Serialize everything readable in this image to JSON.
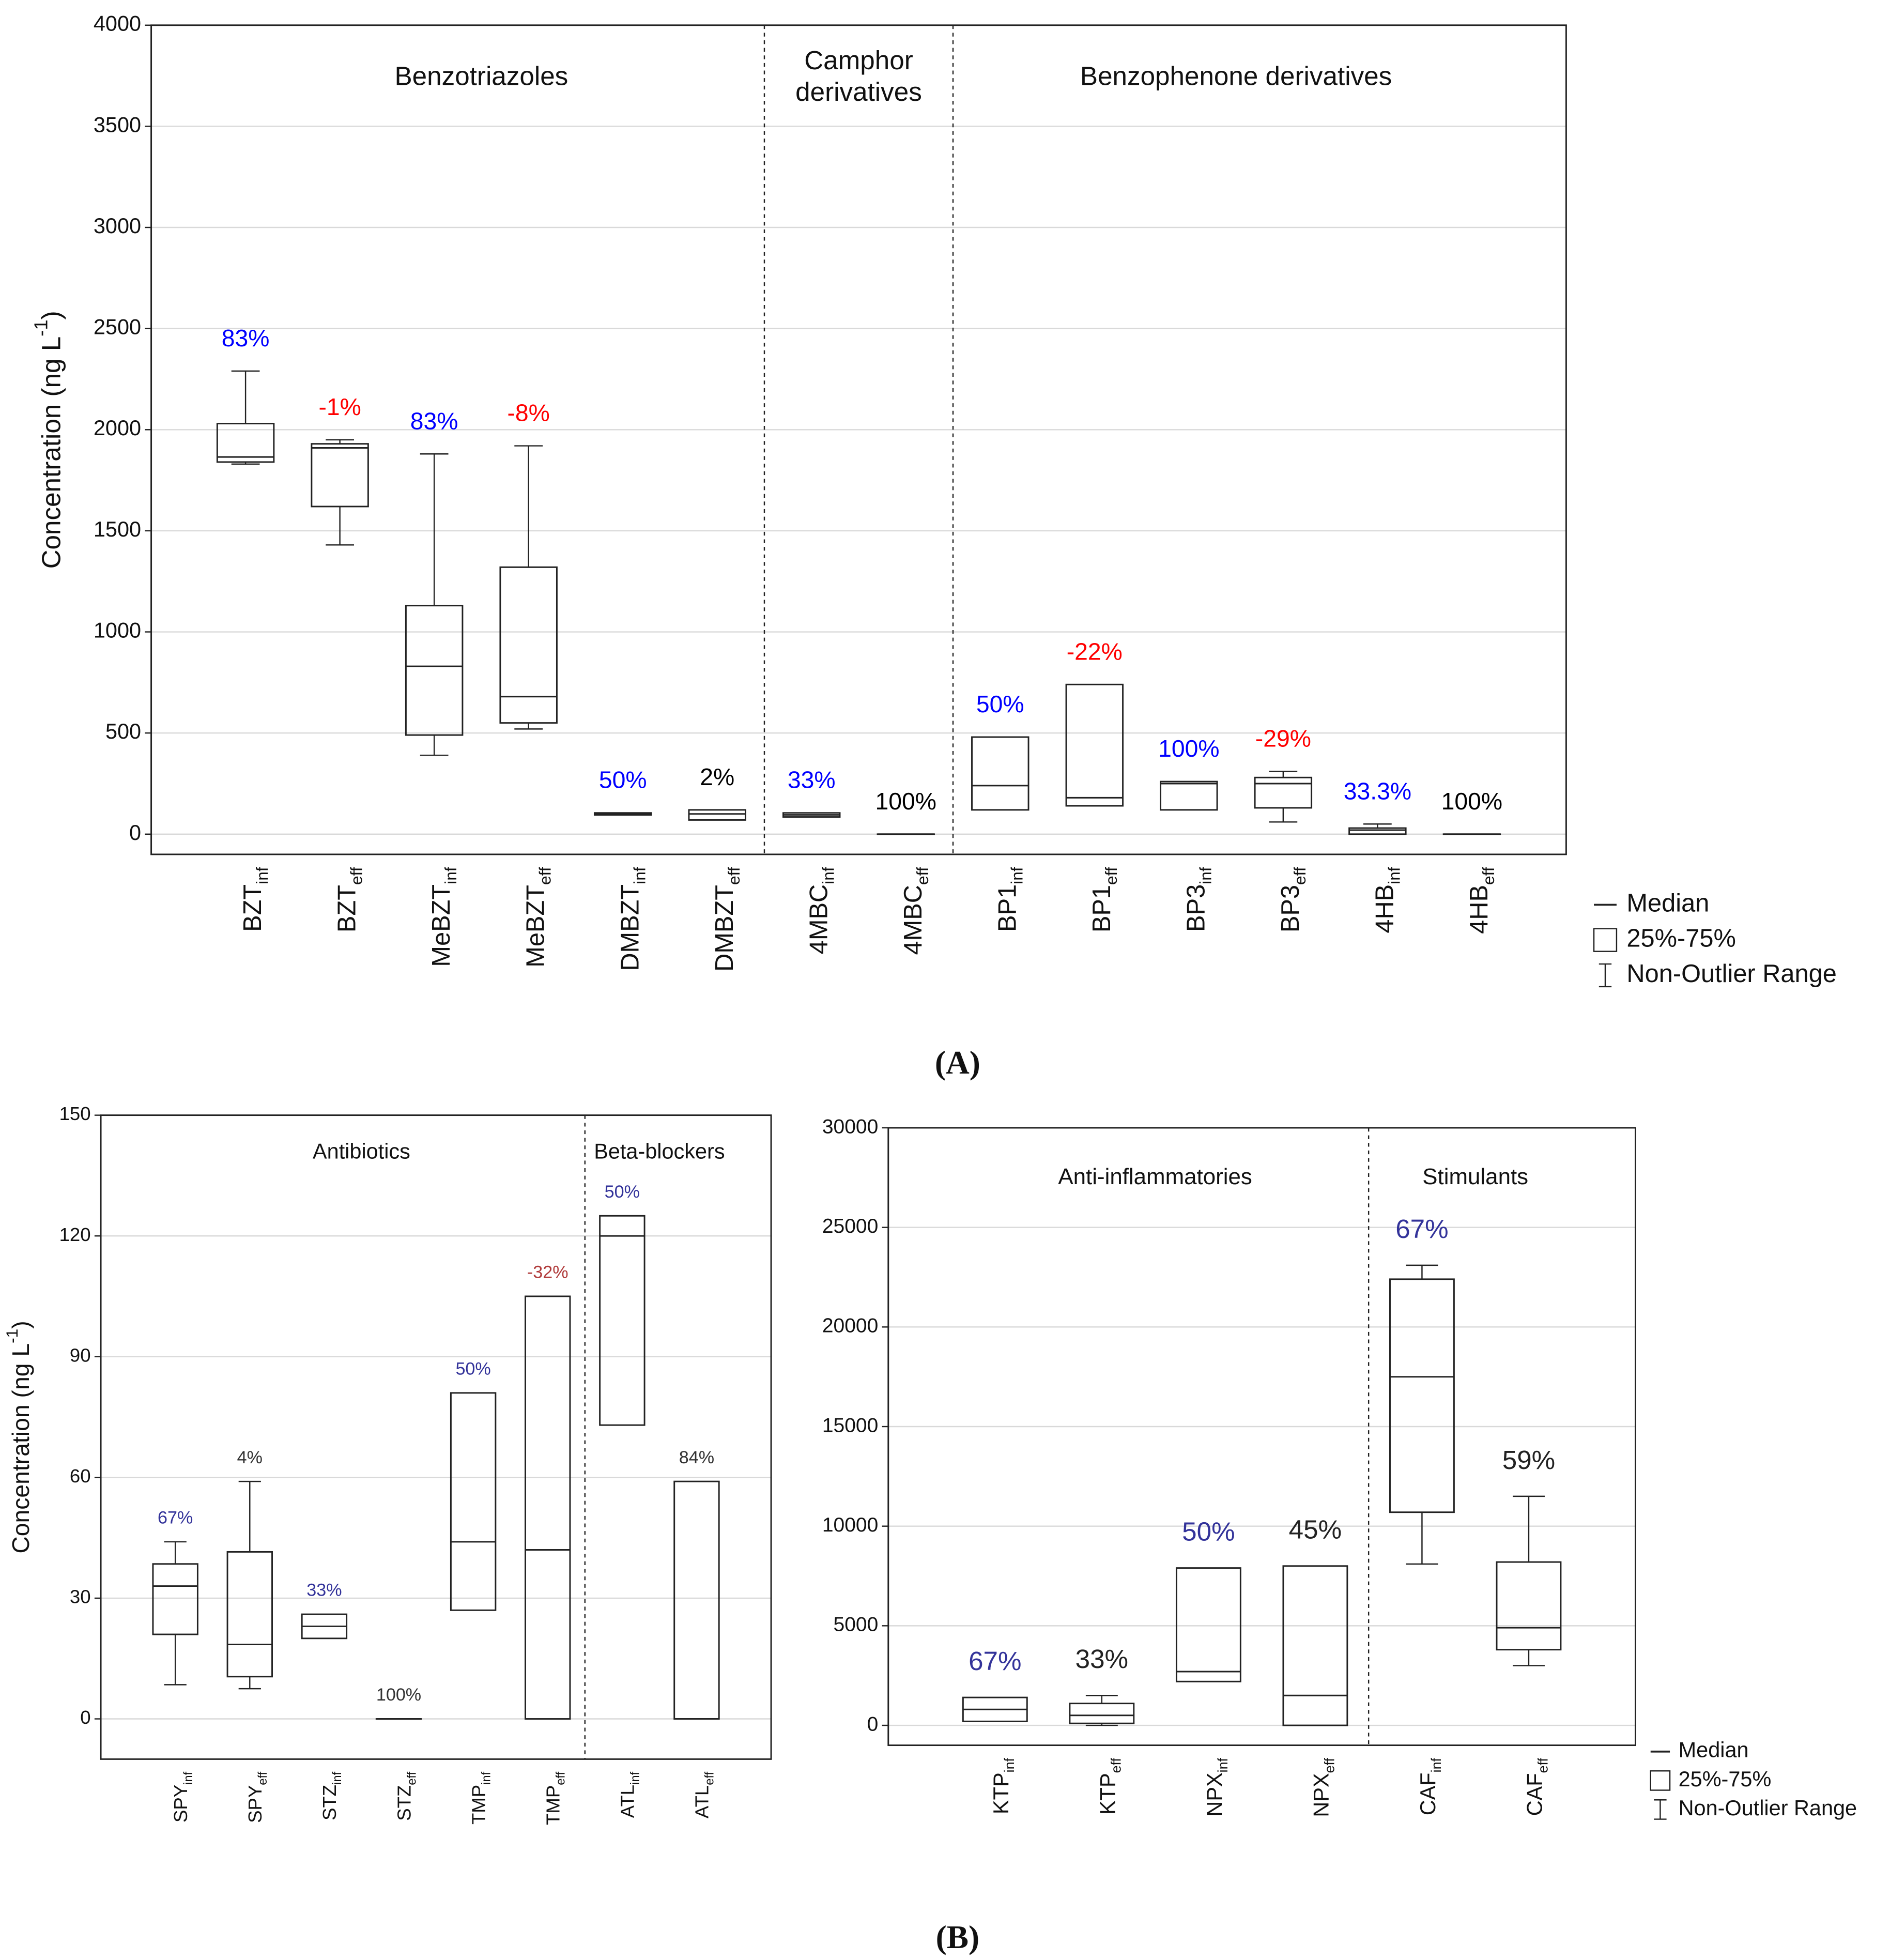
{
  "captions": [
    "(A)",
    "(B)"
  ],
  "chart_data": [
    {
      "type": "box",
      "ylabel": "Concentration (ng L",
      "ylabel_sup": "-1",
      "ylabel_end": ")",
      "ylim": [
        -100,
        4000
      ],
      "yticks": [
        0,
        500,
        1000,
        1500,
        2000,
        2500,
        3000,
        3500,
        4000
      ],
      "grid": true,
      "legend": [
        "Median",
        "25%-75%",
        "Non-Outlier Range"
      ],
      "groups": [
        {
          "label": [
            "Benzotriazoles"
          ],
          "boxes": [
            {
              "name": "BZT",
              "sub": "inf",
              "min": 1830,
              "q1": 1840,
              "median": 1865,
              "q3": 2030,
              "max": 2290,
              "label": "83%",
              "label_color": "#0000ff"
            },
            {
              "name": "BZT",
              "sub": "eff",
              "min": 1430,
              "q1": 1620,
              "median": 1910,
              "q3": 1930,
              "max": 1950,
              "label": "-1%",
              "label_color": "#ff0000"
            },
            {
              "name": "MeBZT",
              "sub": "inf",
              "min": 390,
              "q1": 490,
              "median": 830,
              "q3": 1130,
              "max": 1880,
              "label": "83%",
              "label_color": "#0000ff"
            },
            {
              "name": "MeBZT",
              "sub": "eff",
              "min": 520,
              "q1": 550,
              "median": 680,
              "q3": 1320,
              "max": 1920,
              "label": "-8%",
              "label_color": "#ff0000"
            },
            {
              "name": "DMBZT",
              "sub": "inf",
              "min": 95,
              "q1": 95,
              "median": 100,
              "q3": 105,
              "max": 105,
              "label": "50%",
              "label_color": "#0000ff"
            },
            {
              "name": "DMBZT",
              "sub": "eff",
              "min": 70,
              "q1": 70,
              "median": 100,
              "q3": 120,
              "max": 120,
              "label": "2%",
              "label_color": "#000000"
            }
          ]
        },
        {
          "label": [
            "Camphor",
            "derivatives"
          ],
          "boxes": [
            {
              "name": "4MBC",
              "sub": "inf",
              "min": 85,
              "q1": 85,
              "median": 95,
              "q3": 105,
              "max": 105,
              "label": "33%",
              "label_color": "#0000ff"
            },
            {
              "name": "4MBC",
              "sub": "eff",
              "min": 0,
              "q1": 0,
              "median": 0,
              "q3": 0,
              "max": 0,
              "label": "100%",
              "label_color": "#000000"
            }
          ]
        },
        {
          "label": [
            "Benzophenone derivatives"
          ],
          "boxes": [
            {
              "name": "BP1",
              "sub": "inf",
              "min": 120,
              "q1": 120,
              "median": 240,
              "q3": 480,
              "max": 480,
              "label": "50%",
              "label_color": "#0000ff"
            },
            {
              "name": "BP1",
              "sub": "eff",
              "min": 140,
              "q1": 140,
              "median": 180,
              "q3": 740,
              "max": 740,
              "label": "-22%",
              "label_color": "#ff0000"
            },
            {
              "name": "BP3",
              "sub": "inf",
              "min": 120,
              "q1": 120,
              "median": 250,
              "q3": 260,
              "max": 260,
              "label": "100%",
              "label_color": "#0000ff"
            },
            {
              "name": "BP3",
              "sub": "eff",
              "min": 60,
              "q1": 130,
              "median": 250,
              "q3": 280,
              "max": 310,
              "label": "-29%",
              "label_color": "#ff0000"
            },
            {
              "name": "4HB",
              "sub": "inf",
              "min": 0,
              "q1": 0,
              "median": 20,
              "q3": 30,
              "max": 50,
              "label": "33.3%",
              "label_color": "#0000ff"
            },
            {
              "name": "4HB",
              "sub": "eff",
              "min": 0,
              "q1": 0,
              "median": 0,
              "q3": 0,
              "max": 0,
              "label": "100%",
              "label_color": "#000000"
            }
          ]
        }
      ]
    },
    {
      "type": "box",
      "ylabel": "Concentration (ng L",
      "ylabel_sup": "-1",
      "ylabel_end": ")",
      "ylim": [
        -10,
        150
      ],
      "yticks": [
        0,
        30,
        60,
        90,
        120,
        150
      ],
      "grid": true,
      "groups": [
        {
          "label": [
            "Antibiotics"
          ],
          "boxes": [
            {
              "name": "SPY",
              "sub": "inf",
              "min": 8.5,
              "q1": 21,
              "median": 33,
              "q3": 38.5,
              "max": 44,
              "label": "67%",
              "label_color": "#33339a"
            },
            {
              "name": "SPY",
              "sub": "eff",
              "min": 7.5,
              "q1": 10.5,
              "median": 18.5,
              "q3": 41.5,
              "max": 59,
              "label": "4%",
              "label_color": "#333333"
            },
            {
              "name": "STZ",
              "sub": "inf",
              "min": 20,
              "q1": 20,
              "median": 23,
              "q3": 26,
              "max": 26,
              "label": "33%",
              "label_color": "#33339a"
            },
            {
              "name": "STZ",
              "sub": "eff",
              "min": 0,
              "q1": 0,
              "median": 0,
              "q3": 0,
              "max": 0,
              "label": "100%",
              "label_color": "#333333"
            },
            {
              "name": "TMP",
              "sub": "inf",
              "min": 27,
              "q1": 27,
              "median": 44,
              "q3": 81,
              "max": 81,
              "label": "50%",
              "label_color": "#33339a"
            },
            {
              "name": "TMP",
              "sub": "eff",
              "min": 0,
              "q1": 0,
              "median": 42,
              "q3": 105,
              "max": 105,
              "label": "-32%",
              "label_color": "#b03a3a"
            }
          ]
        },
        {
          "label": [
            "Beta-blockers"
          ],
          "boxes": [
            {
              "name": "ATL",
              "sub": "inf",
              "min": 73,
              "q1": 73,
              "median": 120,
              "q3": 125,
              "max": 125,
              "label": "50%",
              "label_color": "#33339a"
            },
            {
              "name": "ATL",
              "sub": "eff",
              "min": 0,
              "q1": 0,
              "median": 0,
              "q3": 59,
              "max": 59,
              "label": "84%",
              "label_color": "#333333"
            }
          ]
        }
      ]
    },
    {
      "type": "box",
      "ylim": [
        -1000,
        30000
      ],
      "yticks": [
        0,
        5000,
        10000,
        15000,
        20000,
        25000,
        30000
      ],
      "grid": true,
      "legend": [
        "Median",
        "25%-75%",
        "Non-Outlier Range"
      ],
      "groups": [
        {
          "label": [
            "Anti-inflammatories"
          ],
          "boxes": [
            {
              "name": "KTP",
              "sub": "inf",
              "min": 200,
              "q1": 200,
              "median": 800,
              "q3": 1400,
              "max": 1400,
              "label": "67%",
              "label_color": "#33339a"
            },
            {
              "name": "KTP",
              "sub": "eff",
              "min": 0,
              "q1": 100,
              "median": 500,
              "q3": 1100,
              "max": 1500,
              "label": "33%",
              "label_color": "#222222"
            },
            {
              "name": "NPX",
              "sub": "inf",
              "min": 2200,
              "q1": 2200,
              "median": 2700,
              "q3": 7900,
              "max": 7900,
              "label": "50%",
              "label_color": "#33339a"
            },
            {
              "name": "NPX",
              "sub": "eff",
              "min": 0,
              "q1": 0,
              "median": 1500,
              "q3": 8000,
              "max": 8000,
              "label": "45%",
              "label_color": "#222222"
            }
          ]
        },
        {
          "label": [
            "Stimulants"
          ],
          "boxes": [
            {
              "name": "CAF",
              "sub": "inf",
              "min": 8100,
              "q1": 10700,
              "median": 17500,
              "q3": 22400,
              "max": 23100,
              "label": "67%",
              "label_color": "#33339a"
            },
            {
              "name": "CAF",
              "sub": "eff",
              "min": 3000,
              "q1": 3800,
              "median": 4900,
              "q3": 8200,
              "max": 11500,
              "label": "59%",
              "label_color": "#222222"
            }
          ]
        }
      ]
    }
  ]
}
